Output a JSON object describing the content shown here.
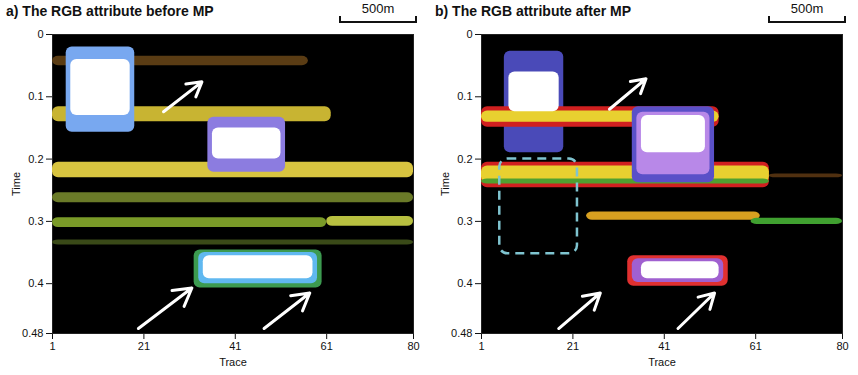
{
  "chart_data": [
    {
      "type": "image",
      "title": "a) The RGB attribute before MP",
      "scale_bar": "500m",
      "x_label": "Trace",
      "y_label": "Time",
      "xlim": [
        1,
        80
      ],
      "xticks": [
        1,
        21,
        41,
        61,
        80
      ],
      "ylim": [
        0,
        0.48
      ],
      "yticks": [
        0,
        0.1,
        0.2,
        0.3,
        0.4,
        0.48
      ],
      "features": [
        {
          "x1": 1,
          "x2": 57,
          "t1": 0.035,
          "t2": 0.05,
          "color": "#5a3c14"
        },
        {
          "x1": 1,
          "x2": 62,
          "t1": 0.116,
          "t2": 0.14,
          "color": "#c8b432"
        },
        {
          "x1": 1,
          "x2": 80,
          "t1": 0.205,
          "t2": 0.23,
          "color": "#d8c440"
        },
        {
          "x1": 1,
          "x2": 80,
          "t1": 0.254,
          "t2": 0.27,
          "color": "#6a7a28"
        },
        {
          "x1": 1,
          "x2": 61,
          "t1": 0.294,
          "t2": 0.31,
          "color": "#7a9a28"
        },
        {
          "x1": 61,
          "x2": 80,
          "t1": 0.292,
          "t2": 0.308,
          "color": "#b8c040"
        },
        {
          "x1": 1,
          "x2": 80,
          "t1": 0.33,
          "t2": 0.338,
          "color": "#3a4a18"
        },
        {
          "x1": 4,
          "x2": 19,
          "t1": 0.02,
          "t2": 0.157,
          "color": "#78a8f0"
        },
        {
          "x1": 5,
          "x2": 18,
          "t1": 0.04,
          "t2": 0.13,
          "color": "#ffffff"
        },
        {
          "x1": 35,
          "x2": 52,
          "t1": 0.133,
          "t2": 0.221,
          "color": "#8c7ce0"
        },
        {
          "x1": 36,
          "x2": 51,
          "t1": 0.15,
          "t2": 0.2,
          "color": "#ffffff"
        },
        {
          "x1": 32,
          "x2": 60,
          "t1": 0.346,
          "t2": 0.407,
          "color": "#3c9a50"
        },
        {
          "x1": 33,
          "x2": 59,
          "t1": 0.35,
          "t2": 0.4,
          "color": "#60b8f0"
        },
        {
          "x1": 34,
          "x2": 58,
          "t1": 0.355,
          "t2": 0.392,
          "color": "#ffffff"
        }
      ],
      "arrows": [
        {
          "x1": 25.3,
          "t1": 0.124,
          "x2": 33.7,
          "t2": 0.076
        },
        {
          "x1": 19.8,
          "t1": 0.472,
          "x2": 31.5,
          "t2": 0.407
        },
        {
          "x1": 47.3,
          "t1": 0.472,
          "x2": 57.3,
          "t2": 0.415
        }
      ]
    },
    {
      "type": "image",
      "title": "b) The RGB attribute after MP",
      "scale_bar": "500m",
      "x_label": "Trace",
      "y_label": "Time",
      "xlim": [
        1,
        80
      ],
      "xticks": [
        1,
        21,
        41,
        61,
        80
      ],
      "ylim": [
        0,
        0.48
      ],
      "yticks": [
        0,
        0.1,
        0.2,
        0.3,
        0.4,
        0.48
      ],
      "features": [
        {
          "x1": 6,
          "x2": 19,
          "t1": 0.027,
          "t2": 0.19,
          "color": "#4a4ab8"
        },
        {
          "x1": 1,
          "x2": 53,
          "t1": 0.116,
          "t2": 0.149,
          "color": "#d02020"
        },
        {
          "x1": 1,
          "x2": 53,
          "t1": 0.123,
          "t2": 0.141,
          "color": "#e8d030"
        },
        {
          "x1": 7,
          "x2": 18,
          "t1": 0.06,
          "t2": 0.124,
          "color": "#ffffff"
        },
        {
          "x1": 1,
          "x2": 64,
          "t1": 0.205,
          "t2": 0.246,
          "color": "#d02020"
        },
        {
          "x1": 1,
          "x2": 64,
          "t1": 0.211,
          "t2": 0.238,
          "color": "#e8d030"
        },
        {
          "x1": 1,
          "x2": 64,
          "t1": 0.232,
          "t2": 0.24,
          "color": "#50a030"
        },
        {
          "x1": 64,
          "x2": 80,
          "t1": 0.224,
          "t2": 0.23,
          "color": "#503010"
        },
        {
          "x1": 34,
          "x2": 52,
          "t1": 0.116,
          "t2": 0.238,
          "color": "#5a50c8"
        },
        {
          "x1": 35,
          "x2": 51,
          "t1": 0.125,
          "t2": 0.225,
          "color": "#b888e8"
        },
        {
          "x1": 36,
          "x2": 50,
          "t1": 0.13,
          "t2": 0.19,
          "color": "#ffffff"
        },
        {
          "x1": 24,
          "x2": 62,
          "t1": 0.285,
          "t2": 0.298,
          "color": "#d8a020"
        },
        {
          "x1": 60,
          "x2": 80,
          "t1": 0.295,
          "t2": 0.305,
          "color": "#40a030"
        },
        {
          "x1": 33,
          "x2": 55,
          "t1": 0.355,
          "t2": 0.404,
          "color": "#e03030"
        },
        {
          "x1": 34,
          "x2": 54,
          "t1": 0.36,
          "t2": 0.398,
          "color": "#a060d0"
        },
        {
          "x1": 36,
          "x2": 53,
          "t1": 0.365,
          "t2": 0.392,
          "color": "#ffffff"
        }
      ],
      "arrows": [
        {
          "x1": 29,
          "t1": 0.12,
          "x2": 37,
          "t2": 0.071
        },
        {
          "x1": 17.9,
          "t1": 0.472,
          "x2": 27,
          "t2": 0.415
        },
        {
          "x1": 44,
          "t1": 0.472,
          "x2": 52,
          "t2": 0.415
        }
      ],
      "boxes": [
        {
          "x1": 5,
          "x2": 22,
          "t1": 0.2,
          "t2": 0.352,
          "color": "#7fc4d0"
        }
      ]
    }
  ]
}
